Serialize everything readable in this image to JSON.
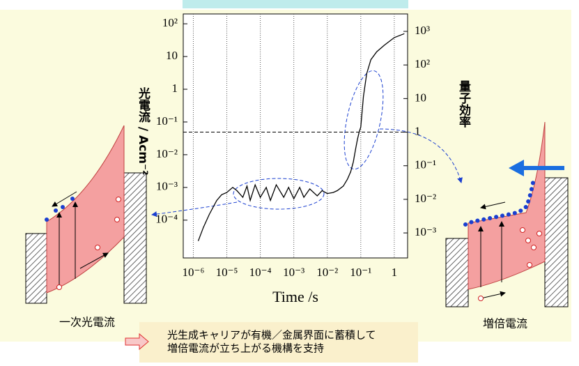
{
  "chart_data": {
    "type": "line",
    "xlabel": "Time /s",
    "ylabel": "光電流 / Acm⁻²",
    "y2label": "量子効率",
    "log_x": true,
    "log_y": true,
    "color": "#000000",
    "xlim": [
      5e-07,
      2.5
    ],
    "ylim": [
      7e-06,
      200
    ],
    "y2lim": [
      0.00018,
      3300
    ],
    "xticks": [
      {
        "value": 1e-06,
        "label": "10⁻⁶"
      },
      {
        "value": 1e-05,
        "label": "10⁻⁵"
      },
      {
        "value": 0.0001,
        "label": "10⁻⁴"
      },
      {
        "value": 0.001,
        "label": "10⁻³"
      },
      {
        "value": 0.01,
        "label": "10⁻²"
      },
      {
        "value": 0.1,
        "label": "10⁻¹"
      },
      1
    ],
    "yticks": [
      {
        "value": 0.0001,
        "label": "10⁻⁴"
      },
      {
        "value": 0.001,
        "label": "10⁻³"
      },
      {
        "value": 0.01,
        "label": "10⁻²"
      },
      {
        "value": 0.1,
        "label": "10⁻¹"
      },
      1,
      10,
      {
        "value": 100,
        "label": "10²"
      }
    ],
    "y2ticks": [
      {
        "value": 0.001,
        "label": "10⁻³"
      },
      {
        "value": 0.01,
        "label": "10⁻²"
      },
      {
        "value": 0.1,
        "label": "10⁻¹"
      },
      1,
      10,
      {
        "value": 100,
        "label": "10²"
      },
      {
        "value": 1000,
        "label": "10³"
      }
    ],
    "y2_reference_line": 1,
    "grid": true,
    "x": [
      1.4e-06,
      2e-06,
      3e-06,
      5e-06,
      7e-06,
      1e-05,
      1.5e-05,
      2e-05,
      3e-05,
      4e-05,
      5e-05,
      7e-05,
      0.0001,
      0.00015,
      0.0002,
      0.0003,
      0.0005,
      0.0007,
      0.001,
      0.0015,
      0.002,
      0.003,
      0.005,
      0.007,
      0.01,
      0.015,
      0.02,
      0.03,
      0.04,
      0.05,
      0.06,
      0.07,
      0.08,
      0.09,
      0.1,
      0.12,
      0.15,
      0.2,
      0.3,
      0.5,
      1,
      2
    ],
    "values": [
      2.3e-05,
      6e-05,
      0.00015,
      0.0004,
      0.0006,
      0.0007,
      0.001,
      0.0008,
      0.0005,
      0.0011,
      0.0004,
      0.0012,
      0.0005,
      0.001,
      0.0004,
      0.0012,
      0.0005,
      0.001,
      0.00045,
      0.001,
      0.0005,
      0.0009,
      0.00055,
      0.0008,
      0.00065,
      0.0007,
      0.0008,
      0.0011,
      0.0018,
      0.003,
      0.006,
      0.015,
      0.03,
      0.05,
      0.07,
      0.6,
      3,
      8,
      14,
      22,
      38,
      50
    ]
  },
  "diagrams": {
    "left_label": "一次光電流",
    "right_label": "増倍電流"
  },
  "note": {
    "lines": [
      "光生成キャリアが有機／金属界面に蓄積して",
      "増倍電流が立ち上がる機構を支持"
    ]
  }
}
